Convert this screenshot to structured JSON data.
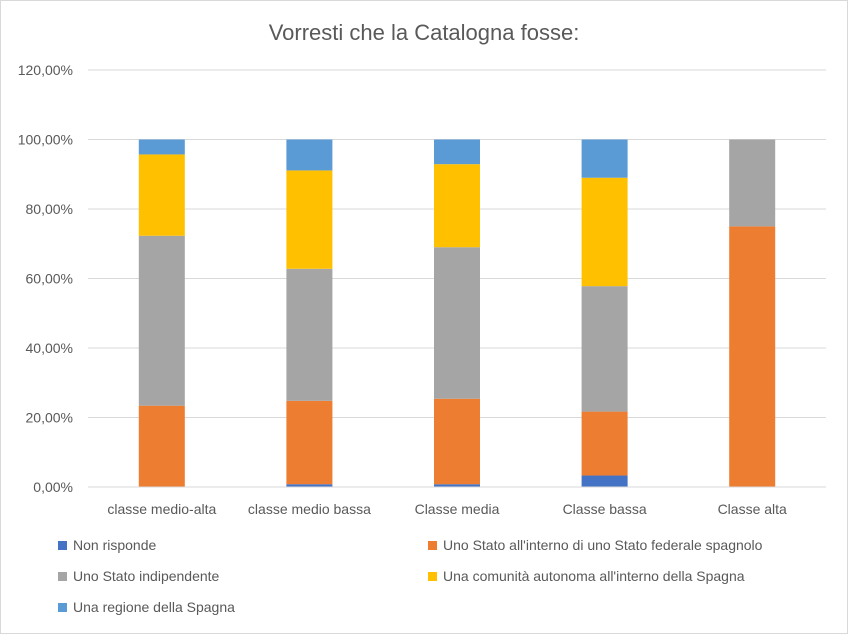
{
  "chart_data": {
    "type": "bar",
    "stacked": true,
    "title": "Vorresti che la Catalogna fosse:",
    "xlabel": "",
    "ylabel": "",
    "ylim": [
      0,
      120
    ],
    "yticks": [
      "0,00%",
      "20,00%",
      "40,00%",
      "60,00%",
      "80,00%",
      "100,00%",
      "120,00%"
    ],
    "grid": true,
    "legend_position": "bottom",
    "categories": [
      "classe medio-alta",
      "classe medio bassa",
      "Classe media",
      "Classe bassa",
      "Classe alta"
    ],
    "series": [
      {
        "name": "Non risponde",
        "color": "#4472C4",
        "values": [
          0,
          0.8,
          0.8,
          3.3,
          0
        ]
      },
      {
        "name": "Uno Stato all'interno di uno Stato federale spagnolo",
        "color": "#ED7D31",
        "values": [
          23.4,
          24.0,
          24.6,
          18.4,
          75.0
        ]
      },
      {
        "name": "Uno Stato indipendente",
        "color": "#A5A5A5",
        "values": [
          48.9,
          38.0,
          43.6,
          36.1,
          25.0
        ]
      },
      {
        "name": "Una comunità autonoma all'interno della Spagna",
        "color": "#FFC000",
        "values": [
          23.4,
          28.3,
          23.9,
          31.2,
          0
        ]
      },
      {
        "name": "Una regione della Spagna",
        "color": "#5B9BD5",
        "values": [
          4.3,
          8.9,
          7.1,
          11.0,
          0
        ]
      }
    ]
  }
}
